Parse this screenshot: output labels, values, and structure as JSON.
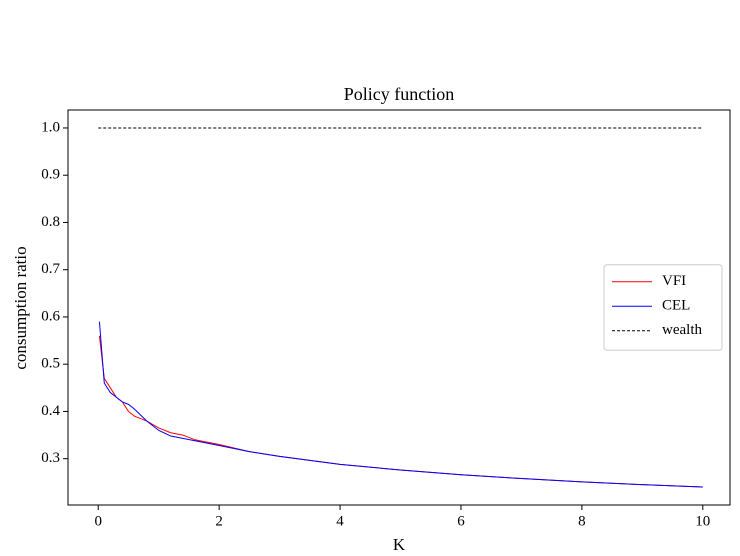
{
  "chart_data": {
    "type": "line",
    "title": "Policy function",
    "x_label": "K",
    "y_label": "consumption ratio",
    "x": [
      0.02,
      0.1,
      0.2,
      0.3,
      0.4,
      0.5,
      0.6,
      0.8,
      1.0,
      1.2,
      1.4,
      1.6,
      2,
      2.5,
      3,
      4,
      5,
      6,
      7,
      8,
      9,
      10
    ],
    "series": [
      {
        "name": "VFI",
        "color": "#ff0000",
        "values": [
          0.56,
          0.47,
          0.45,
          0.43,
          0.42,
          0.4,
          0.39,
          0.38,
          0.365,
          0.355,
          0.35,
          0.34,
          0.33,
          0.315,
          0.305,
          0.288,
          0.276,
          0.266,
          0.258,
          0.251,
          0.245,
          0.24
        ]
      },
      {
        "name": "CEL",
        "color": "#0000ff",
        "values": [
          0.59,
          0.46,
          0.44,
          0.43,
          0.42,
          0.415,
          0.405,
          0.38,
          0.36,
          0.348,
          0.343,
          0.338,
          0.328,
          0.315,
          0.305,
          0.288,
          0.276,
          0.266,
          0.258,
          0.251,
          0.245,
          0.24
        ]
      },
      {
        "name": "wealth",
        "color": "#000000",
        "dashed": true,
        "x": [
          0,
          10
        ],
        "values": [
          1,
          1
        ]
      }
    ],
    "xlim": [
      -0.5,
      10.45
    ],
    "ylim": [
      0.202,
      1.038
    ],
    "xticks": [
      0,
      2,
      4,
      6,
      8,
      10
    ],
    "yticks": [
      0.3,
      0.4,
      0.5,
      0.6,
      0.7,
      0.8,
      0.9,
      {
        "value": 1,
        "label": "1.0"
      }
    ],
    "legend": "center right"
  }
}
